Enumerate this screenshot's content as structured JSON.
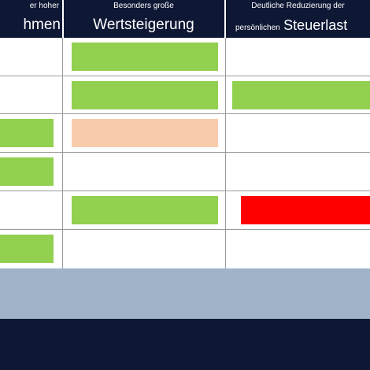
{
  "header": {
    "col1_small": "er hoher",
    "col1_big": "hmen",
    "col2_small": "Besonders große",
    "col2_big": "Wertsteigerung",
    "col3_small": "Deutliche Reduzierung der",
    "col3_mix_small": "persönlichen",
    "col3_mix_big": "Steuerlast"
  },
  "colors": {
    "header_bg": "#0e1834",
    "green": "#92d050",
    "peach": "#f8cbad",
    "red": "#ff0000",
    "footer_light": "#a0b3c9",
    "footer_dark": "#0e1834"
  },
  "rows": [
    {
      "col1": "none",
      "col2": "green",
      "col3": "none"
    },
    {
      "col1": "none",
      "col2": "green",
      "col3": "green"
    },
    {
      "col1": "green",
      "col2": "peach",
      "col3": "none"
    },
    {
      "col1": "green",
      "col2": "none",
      "col3": "none"
    },
    {
      "col1": "none",
      "col2": "green",
      "col3": "red"
    },
    {
      "col1": "green",
      "col2": "none",
      "col3": "none"
    }
  ]
}
